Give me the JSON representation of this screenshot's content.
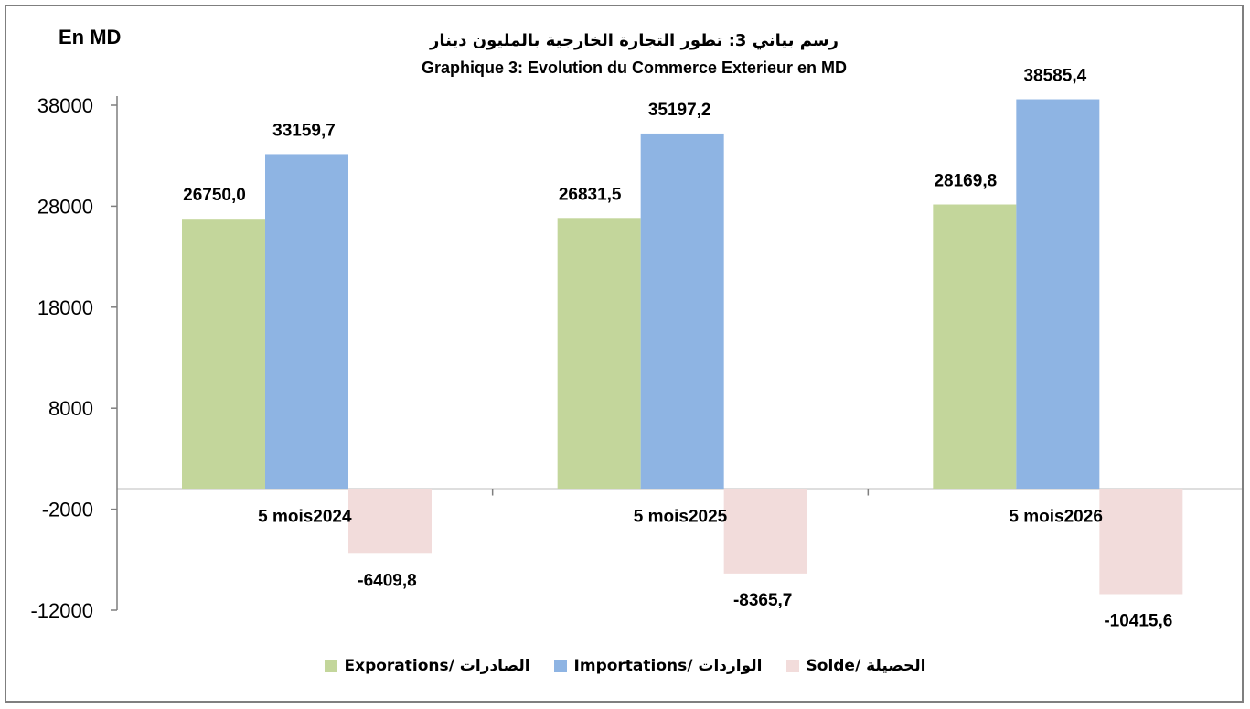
{
  "unit_label": "En MD",
  "title_ar": "رسم بياني 3:  تطور التجارة الخارجية بالمليون دينار",
  "title_fr": "Graphique 3: Evolution du Commerce Exterieur en MD",
  "colors": {
    "exports": "#c3d69b",
    "imports": "#8eb4e3",
    "solde": "#f2dcdb"
  },
  "chart_data": {
    "type": "bar",
    "title": "Graphique 3: Evolution du Commerce Exterieur en MD",
    "categories": [
      "5 mois2024",
      "5 mois2025",
      "5 mois2026"
    ],
    "series": [
      {
        "name": "Exporations/  الصادرات",
        "values": [
          26750.0,
          26831.5,
          28169.8
        ],
        "labels": [
          "26750,0",
          "26831,5",
          "28169,8"
        ]
      },
      {
        "name": "Importations/ الواردات",
        "values": [
          33159.7,
          35197.2,
          38585.4
        ],
        "labels": [
          "33159,7",
          "35197,2",
          "38585,4"
        ]
      },
      {
        "name": "Solde/ الحصيلة",
        "values": [
          -6409.8,
          -8365.7,
          -10415.6
        ],
        "labels": [
          "-6409,8",
          "-8365,7",
          "-10415,6"
        ]
      }
    ],
    "y_ticks": [
      38000,
      28000,
      18000,
      8000,
      -2000,
      -12000
    ],
    "ylim": [
      -12000,
      38000
    ],
    "grid": false,
    "legend_position": "bottom"
  }
}
